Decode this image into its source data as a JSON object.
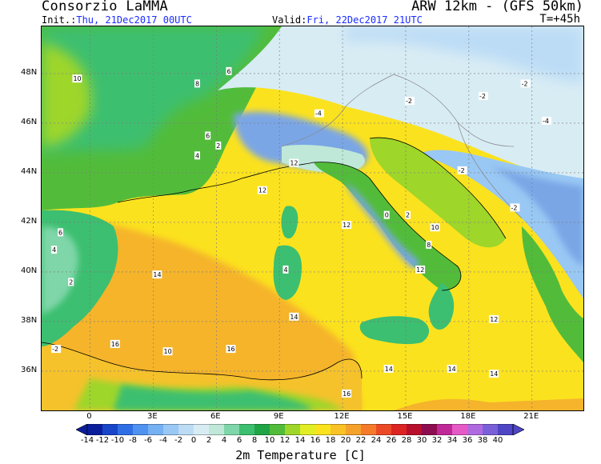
{
  "header": {
    "organization": "Consorzio LaMMA",
    "model": "ARW 12km - (GFS 50km)",
    "init_label": "Init.:",
    "init_value": "Thu, 21Dec2017 00UTC",
    "valid_label": "Valid:",
    "valid_value": "Fri, 22Dec2017 21UTC",
    "step": "T=+45h"
  },
  "map": {
    "variable": "2m Temperature [C]",
    "lat_labels": [
      "48N",
      "46N",
      "44N",
      "42N",
      "40N",
      "38N",
      "36N"
    ],
    "lon_labels": [
      "0",
      "3E",
      "6E",
      "9E",
      "12E",
      "15E",
      "18E",
      "21E"
    ],
    "colors": {
      "sea_warm": "#f5b42c",
      "sea_mid": "#fbe21e",
      "land_cool": "#4fb648",
      "mountain_cold": "#7aa6e6",
      "border": "#888888"
    },
    "contour_labels": [
      {
        "v": "14",
        "lon": 3.0,
        "lat": 39.8
      },
      {
        "v": "16",
        "lon": 1.0,
        "lat": 37.0
      },
      {
        "v": "14",
        "lon": 9.5,
        "lat": 38.1
      },
      {
        "v": "14",
        "lon": 14.0,
        "lat": 36.0
      },
      {
        "v": "14",
        "lon": 17.0,
        "lat": 36.0
      },
      {
        "v": "14",
        "lon": 19.0,
        "lat": 35.8
      },
      {
        "v": "12",
        "lon": 12.0,
        "lat": 41.8
      },
      {
        "v": "12",
        "lon": 15.5,
        "lat": 40.0
      },
      {
        "v": "12",
        "lon": 19.0,
        "lat": 38.0
      },
      {
        "v": "16",
        "lon": 12.0,
        "lat": 35.0
      },
      {
        "v": "16",
        "lon": 6.5,
        "lat": 36.8
      },
      {
        "v": "10",
        "lon": 3.5,
        "lat": 36.7
      },
      {
        "v": "12",
        "lon": 8.0,
        "lat": 43.2
      },
      {
        "v": "12",
        "lon": 9.5,
        "lat": 44.3
      },
      {
        "v": "4",
        "lon": 9.2,
        "lat": 40.0
      },
      {
        "v": "6",
        "lon": 6.5,
        "lat": 48.0
      },
      {
        "v": "8",
        "lon": 5.0,
        "lat": 47.5
      },
      {
        "v": "10",
        "lon": -0.8,
        "lat": 47.7
      },
      {
        "v": "6",
        "lon": 5.5,
        "lat": 45.4
      },
      {
        "v": "4",
        "lon": 5.0,
        "lat": 44.6
      },
      {
        "v": "2",
        "lon": 6.0,
        "lat": 45.0
      },
      {
        "v": "-2",
        "lon": 15.0,
        "lat": 46.8
      },
      {
        "v": "-2",
        "lon": 18.5,
        "lat": 47.0
      },
      {
        "v": "-2",
        "lon": 20.5,
        "lat": 47.5
      },
      {
        "v": "-4",
        "lon": 10.7,
        "lat": 46.3
      },
      {
        "v": "-4",
        "lon": 21.5,
        "lat": 46.0
      },
      {
        "v": "-2",
        "lon": 17.5,
        "lat": 44.0
      },
      {
        "v": "2",
        "lon": 15.0,
        "lat": 42.2
      },
      {
        "v": "8",
        "lon": 16.0,
        "lat": 41.0
      },
      {
        "v": "10",
        "lon": 16.2,
        "lat": 41.7
      },
      {
        "v": "0",
        "lon": 14.0,
        "lat": 42.2
      },
      {
        "v": "-2",
        "lon": 20.0,
        "lat": 42.5
      },
      {
        "v": "6",
        "lon": -1.5,
        "lat": 41.5
      },
      {
        "v": "4",
        "lon": -1.8,
        "lat": 40.8
      },
      {
        "v": "2",
        "lon": -1.0,
        "lat": 39.5
      },
      {
        "v": "-2",
        "lon": -1.8,
        "lat": 36.8
      }
    ],
    "colorbar": {
      "levels": [
        -14,
        -12,
        -10,
        -8,
        -6,
        -4,
        -2,
        0,
        2,
        4,
        6,
        8,
        10,
        12,
        14,
        16,
        18,
        20,
        22,
        24,
        26,
        28,
        30,
        32,
        34,
        36,
        38,
        40
      ],
      "tick_labels": [
        "-14",
        "-12",
        "-10",
        "-8",
        "-6",
        "-4",
        "-2",
        "0",
        "2",
        "4",
        "6",
        "8",
        "10",
        "12",
        "14",
        "16",
        "18",
        "20",
        "22",
        "24",
        "26",
        "28",
        "30",
        "32",
        "34",
        "36",
        "38",
        "40"
      ],
      "colors": [
        "#0a1e9c",
        "#1846c8",
        "#2f6fe6",
        "#4f92f0",
        "#74b0f2",
        "#99c8f4",
        "#bcdcf6",
        "#d8ecf4",
        "#bfe8d8",
        "#7fd6a8",
        "#3cbf70",
        "#1fa546",
        "#52bc3a",
        "#9ed62a",
        "#e2ee24",
        "#fbe21e",
        "#f9c226",
        "#f5a22c",
        "#f57a2a",
        "#ec4a26",
        "#dc2422",
        "#b8102c",
        "#8e0c50",
        "#c02898",
        "#e65ac6",
        "#b06ae0",
        "#7a60d8",
        "#4e46c4"
      ]
    }
  }
}
